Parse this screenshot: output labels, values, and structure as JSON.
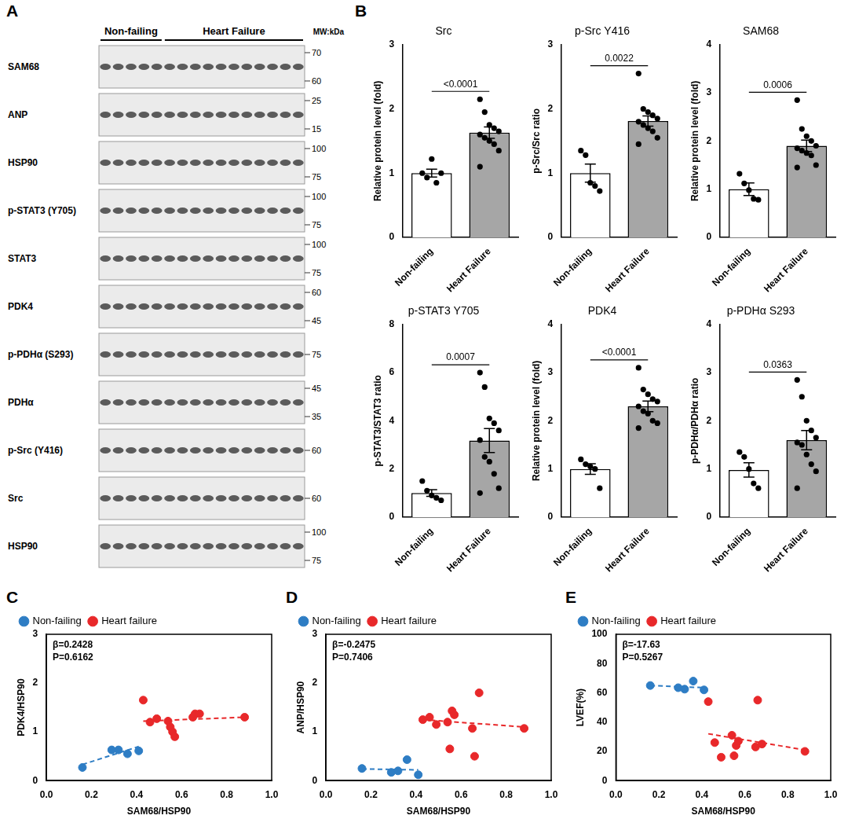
{
  "blot": {
    "letter": "A",
    "mw_label": "MW:kDa",
    "groups": [
      {
        "label": "Non-failing",
        "lanes": 5
      },
      {
        "label": "Heart Failure",
        "lanes": 11
      }
    ],
    "rows": [
      {
        "label": "SAM68",
        "markers": [
          70,
          60
        ]
      },
      {
        "label": "ANP",
        "markers": [
          25,
          15
        ]
      },
      {
        "label": "HSP90",
        "markers": [
          100,
          75
        ]
      },
      {
        "label": "p-STAT3 (Y705)",
        "markers": [
          100,
          75
        ]
      },
      {
        "label": "STAT3",
        "markers": [
          100,
          75
        ]
      },
      {
        "label": "PDK4",
        "markers": [
          60,
          45
        ]
      },
      {
        "label": "p-PDHα (S293)",
        "markers": [
          75
        ]
      },
      {
        "label": "PDHα",
        "markers": [
          45,
          35
        ]
      },
      {
        "label": "p-Src (Y416)",
        "markers": [
          60
        ]
      },
      {
        "label": "Src",
        "markers": [
          60
        ]
      },
      {
        "label": "HSP90",
        "markers": [
          100,
          75
        ]
      }
    ]
  },
  "chart_data": [
    {
      "type": "bar",
      "letter": "B",
      "title": "Src",
      "y_label": "Relative protein level (fold)",
      "categories": [
        "Non-failing",
        "Heart Failure"
      ],
      "values": [
        1.0,
        1.63
      ],
      "errors": [
        0.06,
        0.09
      ],
      "points": [
        [
          1.0,
          0.93,
          1.22,
          0.85,
          1.0
        ],
        [
          2.15,
          1.95,
          1.75,
          1.7,
          1.65,
          1.6,
          1.55,
          1.5,
          1.45,
          1.35,
          1.1
        ]
      ],
      "colors": [
        "#ffffff",
        "#a6a6a6"
      ],
      "annotation": "<0.0001",
      "ylim": [
        0,
        3
      ],
      "yticks": [
        0,
        1,
        2,
        3
      ],
      "grid": false
    },
    {
      "type": "bar",
      "title": "p-Src Y416",
      "y_label": "p-Src/Src ratio",
      "categories": [
        "Non-failing",
        "Heart Failure"
      ],
      "values": [
        1.0,
        1.81
      ],
      "errors": [
        0.14,
        0.08
      ],
      "points": [
        [
          1.35,
          1.28,
          0.85,
          0.8,
          0.72
        ],
        [
          2.55,
          2.0,
          1.95,
          1.9,
          1.85,
          1.8,
          1.75,
          1.7,
          1.65,
          1.55,
          1.45
        ]
      ],
      "colors": [
        "#ffffff",
        "#a6a6a6"
      ],
      "annotation": "0.0022",
      "ylim": [
        0,
        3
      ],
      "yticks": [
        0,
        1,
        2,
        3
      ],
      "grid": false
    },
    {
      "type": "bar",
      "title": "SAM68",
      "y_label": "Relative protein level (fold)",
      "categories": [
        "Non-failing",
        "Heart Failure"
      ],
      "values": [
        1.0,
        1.9
      ],
      "errors": [
        0.13,
        0.12
      ],
      "points": [
        [
          1.32,
          1.12,
          0.98,
          0.8,
          0.78
        ],
        [
          2.85,
          2.25,
          2.1,
          2.0,
          1.9,
          1.85,
          1.8,
          1.75,
          1.7,
          1.5,
          1.45
        ]
      ],
      "colors": [
        "#ffffff",
        "#a6a6a6"
      ],
      "annotation": "0.0006",
      "ylim": [
        0,
        4
      ],
      "yticks": [
        0,
        1,
        2,
        3,
        4
      ],
      "grid": false
    },
    {
      "type": "bar",
      "title": "p-STAT3 Y705",
      "y_label": "p-STAT3/STAT3 ratio",
      "categories": [
        "Non-failing",
        "Heart Failure"
      ],
      "values": [
        1.0,
        3.18
      ],
      "errors": [
        0.14,
        0.5
      ],
      "points": [
        [
          1.5,
          1.1,
          0.9,
          0.8,
          0.7
        ],
        [
          6.0,
          5.4,
          4.1,
          3.9,
          3.6,
          3.2,
          2.5,
          2.3,
          1.8,
          1.2,
          1.0
        ]
      ],
      "colors": [
        "#ffffff",
        "#a6a6a6"
      ],
      "annotation": "0.0007",
      "ylim": [
        0,
        8
      ],
      "yticks": [
        0,
        2,
        4,
        6,
        8
      ],
      "grid": false
    },
    {
      "type": "bar",
      "title": "PDK4",
      "y_label": "Relative protein level (fold)",
      "categories": [
        "Non-failing",
        "Heart Failure"
      ],
      "values": [
        1.0,
        2.3
      ],
      "errors": [
        0.11,
        0.11
      ],
      "points": [
        [
          1.2,
          1.1,
          1.05,
          1.0,
          0.6
        ],
        [
          3.1,
          2.65,
          2.55,
          2.45,
          2.4,
          2.3,
          2.2,
          2.15,
          2.0,
          1.95,
          1.85
        ]
      ],
      "colors": [
        "#ffffff",
        "#a6a6a6"
      ],
      "annotation": "<0.0001",
      "ylim": [
        0,
        4
      ],
      "yticks": [
        0,
        1,
        2,
        3,
        4
      ],
      "grid": false
    },
    {
      "type": "bar",
      "title": "p-PDHα S293",
      "y_label": "p-PDHα/PDHα ratio",
      "categories": [
        "Non-failing",
        "Heart Failure"
      ],
      "values": [
        0.98,
        1.6
      ],
      "errors": [
        0.15,
        0.2
      ],
      "points": [
        [
          1.35,
          1.25,
          1.0,
          0.7,
          0.6
        ],
        [
          2.85,
          2.5,
          2.0,
          1.8,
          1.65,
          1.55,
          1.5,
          1.3,
          1.1,
          0.95,
          0.6
        ]
      ],
      "colors": [
        "#ffffff",
        "#a6a6a6"
      ],
      "annotation": "0.0363",
      "ylim": [
        0,
        4
      ],
      "yticks": [
        0,
        1,
        2,
        3,
        4
      ],
      "grid": false
    },
    {
      "type": "scatter",
      "letter": "C",
      "x_label": "SAM68/HSP90",
      "y_label": "PDK4/HSP90",
      "annotations": [
        "β=0.2428",
        "P=0.6162"
      ],
      "legend": "top",
      "grid": false,
      "xlim": [
        0,
        1
      ],
      "xticks": [
        {
          "value": 0,
          "label": "0.0"
        },
        {
          "value": 0.2,
          "label": "0.2"
        },
        {
          "value": 0.4,
          "label": "0.4"
        },
        {
          "value": 0.6,
          "label": "0.6"
        },
        {
          "value": 0.8,
          "label": "0.8"
        },
        {
          "value": 1,
          "label": "1.0"
        }
      ],
      "ylim": [
        0,
        3
      ],
      "yticks": [
        0,
        1,
        2,
        3
      ],
      "series": [
        {
          "name": "Non-failing",
          "color": "#2e7dc4",
          "marker": "circle",
          "line_style": "dashed",
          "x": [
            0.16,
            0.29,
            0.32,
            0.36,
            0.41
          ],
          "values": [
            0.27,
            0.63,
            0.63,
            0.55,
            0.61
          ],
          "fit": {
            "x": [
              0.16,
              0.41
            ],
            "values": [
              0.33,
              0.7
            ]
          }
        },
        {
          "name": "Heart failure",
          "color": "#e8282a",
          "marker": "circle",
          "line_style": "dashed",
          "x": [
            0.43,
            0.46,
            0.49,
            0.54,
            0.55,
            0.56,
            0.57,
            0.65,
            0.66,
            0.68,
            0.88
          ],
          "values": [
            1.65,
            1.2,
            1.27,
            1.22,
            1.1,
            1.0,
            0.9,
            1.3,
            1.37,
            1.37,
            1.3
          ],
          "fit": {
            "x": [
              0.43,
              0.88
            ],
            "values": [
              1.22,
              1.3
            ]
          }
        }
      ]
    },
    {
      "type": "scatter",
      "letter": "D",
      "x_label": "SAM68/HSP90",
      "y_label": "ANP/HSP90",
      "annotations": [
        "β=-0.2475",
        "P=0.7406"
      ],
      "legend": "top",
      "grid": false,
      "xlim": [
        0,
        1
      ],
      "xticks": [
        {
          "value": 0,
          "label": "0.0"
        },
        {
          "value": 0.2,
          "label": "0.2"
        },
        {
          "value": 0.4,
          "label": "0.4"
        },
        {
          "value": 0.6,
          "label": "0.6"
        },
        {
          "value": 0.8,
          "label": "0.8"
        },
        {
          "value": 1,
          "label": "1.0"
        }
      ],
      "ylim": [
        0,
        3
      ],
      "yticks": [
        0,
        1,
        2,
        3
      ],
      "series": [
        {
          "name": "Non-failing",
          "color": "#2e7dc4",
          "marker": "circle",
          "line_style": "dashed",
          "x": [
            0.16,
            0.29,
            0.32,
            0.36,
            0.41
          ],
          "values": [
            0.25,
            0.17,
            0.2,
            0.43,
            0.12
          ],
          "fit": {
            "x": [
              0.16,
              0.41
            ],
            "values": [
              0.24,
              0.22
            ]
          }
        },
        {
          "name": "Heart failure",
          "color": "#e8282a",
          "marker": "circle",
          "line_style": "dashed",
          "x": [
            0.43,
            0.46,
            0.49,
            0.54,
            0.55,
            0.56,
            0.57,
            0.65,
            0.66,
            0.68,
            0.88
          ],
          "values": [
            1.25,
            1.3,
            1.15,
            1.2,
            0.65,
            1.43,
            1.35,
            1.07,
            0.5,
            1.8,
            1.07
          ],
          "fit": {
            "x": [
              0.43,
              0.88
            ],
            "values": [
              1.25,
              1.1
            ]
          }
        }
      ]
    },
    {
      "type": "scatter",
      "letter": "E",
      "x_label": "SAM68/HSP90",
      "y_label": "LVEF(%)",
      "annotations": [
        "β=-17.63",
        "P=0.5267"
      ],
      "legend": "top",
      "grid": false,
      "xlim": [
        0,
        1
      ],
      "xticks": [
        {
          "value": 0,
          "label": "0.0"
        },
        {
          "value": 0.2,
          "label": "0.2"
        },
        {
          "value": 0.4,
          "label": "0.4"
        },
        {
          "value": 0.6,
          "label": "0.6"
        },
        {
          "value": 0.8,
          "label": "0.8"
        },
        {
          "value": 1,
          "label": "1.0"
        }
      ],
      "ylim": [
        0,
        100
      ],
      "yticks": [
        0,
        20,
        40,
        60,
        80,
        100
      ],
      "series": [
        {
          "name": "Non-failing",
          "color": "#2e7dc4",
          "marker": "circle",
          "line_style": "dashed",
          "x": [
            0.16,
            0.29,
            0.32,
            0.36,
            0.41
          ],
          "values": [
            65,
            63.5,
            62.5,
            68,
            62
          ],
          "fit": {
            "x": [
              0.16,
              0.41
            ],
            "values": [
              65,
              63.5
            ]
          }
        },
        {
          "name": "Heart failure",
          "color": "#e8282a",
          "marker": "circle",
          "line_style": "dashed",
          "x": [
            0.43,
            0.46,
            0.49,
            0.54,
            0.55,
            0.56,
            0.57,
            0.65,
            0.66,
            0.68,
            0.88
          ],
          "values": [
            54,
            26,
            16,
            31,
            17,
            24,
            27,
            23,
            55,
            25,
            20
          ],
          "fit": {
            "x": [
              0.43,
              0.88
            ],
            "values": [
              32,
              21
            ]
          }
        }
      ]
    }
  ]
}
